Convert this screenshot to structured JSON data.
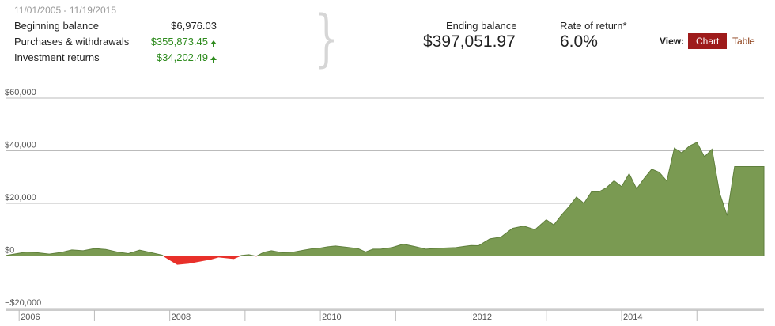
{
  "summary": {
    "date_range": "11/01/2005 - 11/19/2015",
    "rows": [
      {
        "label": "Beginning balance",
        "value": "$6,976.03",
        "arrow": false
      },
      {
        "label": "Purchases & withdrawals",
        "value": "$355,873.45",
        "arrow": true
      },
      {
        "label": "Investment returns",
        "value": "$34,202.49",
        "arrow": true
      }
    ]
  },
  "stats": {
    "ending_balance_label": "Ending balance",
    "ending_balance_value": "$397,051.97",
    "rate_label": "Rate of return*",
    "rate_value": "6.0%"
  },
  "view": {
    "label": "View:",
    "chart_label": "Chart",
    "table_label": "Table",
    "selected": "Chart"
  },
  "colors": {
    "positive_fill": "#7a9a52",
    "positive_stroke": "#5f7f3c",
    "negative_fill": "#e8302a",
    "accent": "#9e1b1b",
    "grid": "#bbbbbb"
  },
  "chart_data": {
    "type": "area",
    "title": "",
    "xlabel": "",
    "ylabel": "",
    "ylim": [
      -20000,
      60000
    ],
    "yticks": [
      {
        "value": 60000,
        "label": "$60,000"
      },
      {
        "value": 40000,
        "label": "$40,000"
      },
      {
        "value": 20000,
        "label": "$20,000"
      },
      {
        "value": 0,
        "label": "$0"
      },
      {
        "value": -20000,
        "label": "−$20,000"
      }
    ],
    "xlim": [
      2005.83,
      2015.89
    ],
    "xticks": [
      {
        "value": 2006,
        "label": "2006"
      },
      {
        "value": 2007,
        "label": ""
      },
      {
        "value": 2008,
        "label": "2008"
      },
      {
        "value": 2009,
        "label": ""
      },
      {
        "value": 2010,
        "label": "2010"
      },
      {
        "value": 2011,
        "label": ""
      },
      {
        "value": 2012,
        "label": "2012"
      },
      {
        "value": 2013,
        "label": ""
      },
      {
        "value": 2014,
        "label": "2014"
      },
      {
        "value": 2015,
        "label": ""
      }
    ],
    "grid": true,
    "x": [
      2005.83,
      2005.95,
      2006.1,
      2006.25,
      2006.4,
      2006.55,
      2006.7,
      2006.85,
      2007.0,
      2007.15,
      2007.3,
      2007.45,
      2007.6,
      2007.75,
      2007.9,
      2008.0,
      2008.1,
      2008.25,
      2008.4,
      2008.55,
      2008.65,
      2008.75,
      2008.85,
      2008.95,
      2009.05,
      2009.15,
      2009.25,
      2009.35,
      2009.5,
      2009.65,
      2009.8,
      2009.9,
      2010.0,
      2010.1,
      2010.2,
      2010.35,
      2010.5,
      2010.6,
      2010.7,
      2010.8,
      2010.95,
      2011.1,
      2011.25,
      2011.4,
      2011.55,
      2011.7,
      2011.8,
      2011.9,
      2012.0,
      2012.1,
      2012.25,
      2012.4,
      2012.55,
      2012.7,
      2012.85,
      2013.0,
      2013.1,
      2013.2,
      2013.3,
      2013.4,
      2013.5,
      2013.6,
      2013.7,
      2013.8,
      2013.9,
      2014.0,
      2014.1,
      2014.2,
      2014.3,
      2014.4,
      2014.5,
      2014.6,
      2014.7,
      2014.8,
      2014.9,
      2015.0,
      2015.1,
      2015.2,
      2015.3,
      2015.4,
      2015.5,
      2015.6,
      2015.7,
      2015.8,
      2015.89
    ],
    "series": [
      {
        "values": [
          200,
          800,
          1500,
          1200,
          700,
          1300,
          2300,
          2000,
          2800,
          2500,
          1500,
          900,
          2200,
          1300,
          300,
          -1500,
          -3200,
          -2800,
          -2000,
          -1200,
          -400,
          -700,
          -1000,
          200,
          500,
          -100,
          1400,
          2000,
          1200,
          1500,
          2300,
          2800,
          3000,
          3500,
          3800,
          3300,
          2800,
          1500,
          2600,
          2600,
          3200,
          4500,
          3600,
          2600,
          2900,
          3100,
          3200,
          3600,
          4000,
          3900,
          6500,
          7200,
          10500,
          11400,
          10000,
          13800,
          11800,
          15500,
          18700,
          22400,
          20000,
          24400,
          24400,
          26000,
          28600,
          26400,
          31300,
          25500,
          29500,
          33000,
          31800,
          28500,
          41000,
          39200,
          41800,
          43200,
          37700,
          40600,
          24000,
          15400,
          34000,
          34000,
          34000,
          34000,
          34000
        ]
      }
    ]
  }
}
